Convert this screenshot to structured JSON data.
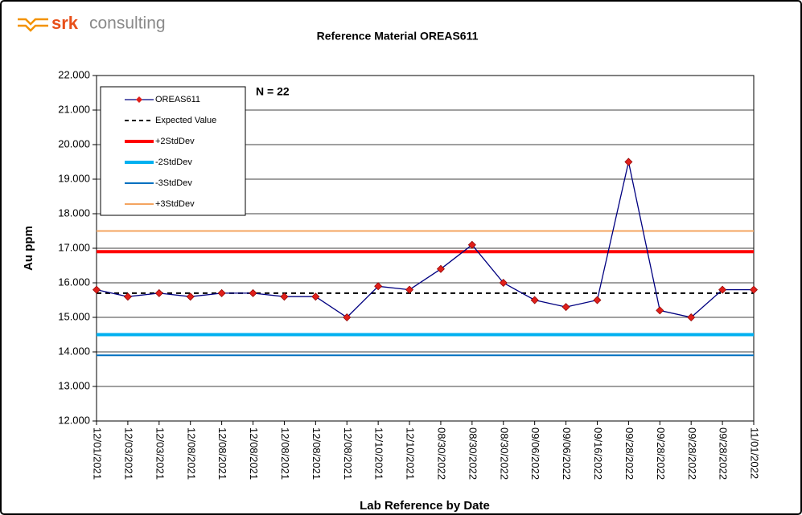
{
  "chart_data": {
    "type": "line",
    "logo": {
      "brand": "srk",
      "text": "consulting"
    },
    "title": "Reference Material OREAS611",
    "annotation": "N = 22",
    "ylabel": "Au ppm",
    "xlabel": "Lab Reference by Date",
    "categories": [
      "12/01/2021",
      "12/03/2021",
      "12/03/2021",
      "12/08/2021",
      "12/08/2021",
      "12/08/2021",
      "12/08/2021",
      "12/08/2021",
      "12/08/2021",
      "12/10/2021",
      "12/10/2021",
      "08/30/2022",
      "08/30/2022",
      "08/30/2022",
      "09/06/2022",
      "09/06/2022",
      "09/16/2022",
      "09/28/2022",
      "09/28/2022",
      "09/28/2022",
      "09/28/2022",
      "11/01/2022"
    ],
    "series": [
      {
        "name": "OREAS611",
        "color": "#000080",
        "marker_color": "#e0201b",
        "values": [
          15.8,
          15.6,
          15.7,
          15.6,
          15.7,
          15.7,
          15.6,
          15.6,
          15.0,
          15.9,
          15.8,
          16.4,
          17.1,
          16.0,
          15.5,
          15.3,
          15.5,
          19.5,
          15.2,
          15.0,
          15.8,
          15.8
        ]
      }
    ],
    "reference_lines": [
      {
        "name": "Expected Value",
        "value": 15.7,
        "color": "#000000",
        "dashed": true,
        "width": 2
      },
      {
        "name": "+2StdDev",
        "value": 16.9,
        "color": "#ff0000",
        "dashed": false,
        "width": 4
      },
      {
        "name": "-2StdDev",
        "value": 14.5,
        "color": "#00b0f0",
        "dashed": false,
        "width": 4
      },
      {
        "name": "-3StdDev",
        "value": 13.9,
        "color": "#0070c0",
        "dashed": false,
        "width": 2
      },
      {
        "name": "+3StdDev",
        "value": 17.5,
        "color": "#f4a460",
        "dashed": false,
        "width": 2
      }
    ],
    "ylim": [
      12,
      22
    ],
    "yticks": [
      {
        "value": 12,
        "label": "12.000"
      },
      {
        "value": 13,
        "label": "13.000"
      },
      {
        "value": 14,
        "label": "14.000"
      },
      {
        "value": 15,
        "label": "15.000"
      },
      {
        "value": 16,
        "label": "16.000"
      },
      {
        "value": 17,
        "label": "17.000"
      },
      {
        "value": 18,
        "label": "18.000"
      },
      {
        "value": 19,
        "label": "19.000"
      },
      {
        "value": 20,
        "label": "20.000"
      },
      {
        "value": 21,
        "label": "21.000"
      },
      {
        "value": 22,
        "label": "22.000"
      }
    ],
    "grid": true,
    "legend": "upper left"
  }
}
